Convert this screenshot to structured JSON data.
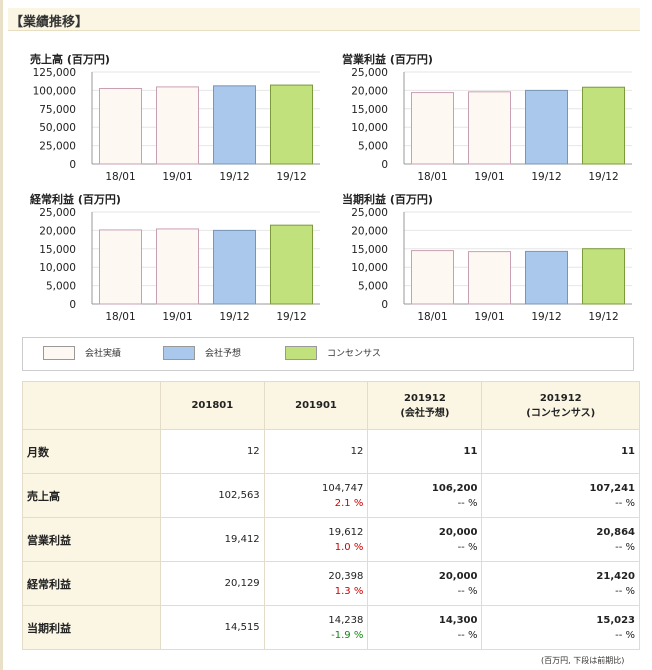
{
  "section_title": "【業績推移】",
  "chart_data": [
    {
      "type": "bar",
      "title": "売上高 (百万円)",
      "categories": [
        "18/01",
        "19/01",
        "19/12",
        "19/12"
      ],
      "values": [
        102563,
        104747,
        106200,
        107241
      ],
      "yticks": [
        "125,000",
        "100,000",
        "75,000",
        "50,000",
        "25,000",
        "0"
      ],
      "ylim": [
        0,
        125000
      ],
      "colors": [
        "#fdf8f2",
        "#fdf8f2",
        "#a9c8ec",
        "#c1e17d"
      ],
      "borders": [
        "#c8a0b4",
        "#c8a0b4",
        "#7a95b5",
        "#7b9a3b"
      ]
    },
    {
      "type": "bar",
      "title": "営業利益 (百万円)",
      "categories": [
        "18/01",
        "19/01",
        "19/12",
        "19/12"
      ],
      "values": [
        19412,
        19612,
        20000,
        20864
      ],
      "yticks": [
        "25,000",
        "20,000",
        "15,000",
        "10,000",
        "5,000",
        "0"
      ],
      "ylim": [
        0,
        25000
      ],
      "colors": [
        "#fdf8f2",
        "#fdf8f2",
        "#a9c8ec",
        "#c1e17d"
      ],
      "borders": [
        "#c8a0b4",
        "#c8a0b4",
        "#7a95b5",
        "#7b9a3b"
      ]
    },
    {
      "type": "bar",
      "title": "経常利益 (百万円)",
      "categories": [
        "18/01",
        "19/01",
        "19/12",
        "19/12"
      ],
      "values": [
        20129,
        20398,
        20000,
        21420
      ],
      "yticks": [
        "25,000",
        "20,000",
        "15,000",
        "10,000",
        "5,000",
        "0"
      ],
      "ylim": [
        0,
        25000
      ],
      "colors": [
        "#fdf8f2",
        "#fdf8f2",
        "#a9c8ec",
        "#c1e17d"
      ],
      "borders": [
        "#c8a0b4",
        "#c8a0b4",
        "#7a95b5",
        "#7b9a3b"
      ]
    },
    {
      "type": "bar",
      "title": "当期利益 (百万円)",
      "categories": [
        "18/01",
        "19/01",
        "19/12",
        "19/12"
      ],
      "values": [
        14515,
        14238,
        14300,
        15023
      ],
      "yticks": [
        "25,000",
        "20,000",
        "15,000",
        "10,000",
        "5,000",
        "0"
      ],
      "ylim": [
        0,
        25000
      ],
      "colors": [
        "#fdf8f2",
        "#fdf8f2",
        "#a9c8ec",
        "#c1e17d"
      ],
      "borders": [
        "#c8a0b4",
        "#c8a0b4",
        "#7a95b5",
        "#7b9a3b"
      ]
    }
  ],
  "legend": [
    {
      "label": "会社実績",
      "color": "#fdf8f2"
    },
    {
      "label": "会社予想",
      "color": "#a9c8ec"
    },
    {
      "label": "コンセンサス",
      "color": "#c1e17d"
    }
  ],
  "table": {
    "headers": [
      "201801",
      "201901",
      "201912\n(会社予想)",
      "201912\n(コンセンサス)"
    ],
    "rows": [
      {
        "label": "月数",
        "cells": [
          {
            "v": "12"
          },
          {
            "v": "12"
          },
          {
            "v": "11"
          },
          {
            "v": "11"
          }
        ]
      },
      {
        "label": "売上高",
        "cells": [
          {
            "v": "102,563"
          },
          {
            "v": "104,747",
            "c": "2.1 %",
            "cc": "red"
          },
          {
            "v": "106,200",
            "c": "-- %"
          },
          {
            "v": "107,241",
            "c": "-- %"
          }
        ]
      },
      {
        "label": "営業利益",
        "cells": [
          {
            "v": "19,412"
          },
          {
            "v": "19,612",
            "c": "1.0 %",
            "cc": "red"
          },
          {
            "v": "20,000",
            "c": "-- %"
          },
          {
            "v": "20,864",
            "c": "-- %"
          }
        ]
      },
      {
        "label": "経常利益",
        "cells": [
          {
            "v": "20,129"
          },
          {
            "v": "20,398",
            "c": "1.3 %",
            "cc": "red"
          },
          {
            "v": "20,000",
            "c": "-- %"
          },
          {
            "v": "21,420",
            "c": "-- %"
          }
        ]
      },
      {
        "label": "当期利益",
        "cells": [
          {
            "v": "14,515"
          },
          {
            "v": "14,238",
            "c": "-1.9 %",
            "cc": "green"
          },
          {
            "v": "14,300",
            "c": "-- %"
          },
          {
            "v": "15,023",
            "c": "-- %"
          }
        ]
      }
    ]
  },
  "footnote": "(百万円, 下段は前期比)"
}
